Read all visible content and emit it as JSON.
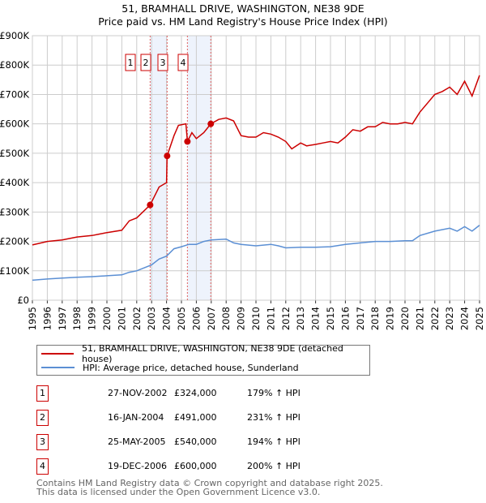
{
  "chart_data": {
    "type": "line",
    "title": "51, BRAMHALL DRIVE, WASHINGTON, NE38 9DE",
    "subtitle": "Price paid vs. HM Land Registry's House Price Index (HPI)",
    "xlim": [
      1995,
      2025
    ],
    "ylim": [
      0,
      900000
    ],
    "x_ticks": [
      "1995",
      "1996",
      "1997",
      "1998",
      "1999",
      "2000",
      "2001",
      "2002",
      "2003",
      "2004",
      "2005",
      "2006",
      "2007",
      "2008",
      "2009",
      "2010",
      "2011",
      "2012",
      "2013",
      "2014",
      "2015",
      "2016",
      "2017",
      "2018",
      "2019",
      "2020",
      "2021",
      "2022",
      "2023",
      "2024",
      "2025"
    ],
    "y_ticks": [
      {
        "value": 0,
        "label": "£0"
      },
      {
        "value": 100000,
        "label": "£100K"
      },
      {
        "value": 200000,
        "label": "£200K"
      },
      {
        "value": 300000,
        "label": "£300K"
      },
      {
        "value": 400000,
        "label": "£400K"
      },
      {
        "value": 500000,
        "label": "£500K"
      },
      {
        "value": 600000,
        "label": "£600K"
      },
      {
        "value": 700000,
        "label": "£700K"
      },
      {
        "value": 800000,
        "label": "£800K"
      },
      {
        "value": 900000,
        "label": "£900K"
      }
    ],
    "grid": true,
    "series": [
      {
        "name": "51, BRAMHALL DRIVE, WASHINGTON, NE38 9DE (detached house)",
        "color": "#cc0000",
        "x": [
          1995,
          1996,
          1997,
          1998,
          1999,
          1999.5,
          2000,
          2001,
          2001.5,
          2002,
          2002.9,
          2003.5,
          2004.0,
          2004.04,
          2004.5,
          2004.8,
          2005.3,
          2005.4,
          2005.7,
          2006.0,
          2006.5,
          2006.97,
          2007.5,
          2008,
          2008.5,
          2009,
          2009.5,
          2010,
          2010.5,
          2011,
          2011.5,
          2012,
          2012.4,
          2013,
          2013.4,
          2014,
          2014.5,
          2015,
          2015.5,
          2016,
          2016.5,
          2017,
          2017.5,
          2018,
          2018.5,
          2019,
          2019.5,
          2020,
          2020.5,
          2021,
          2021.5,
          2022,
          2022.5,
          2023,
          2023.5,
          2024,
          2024.5,
          2025
        ],
        "values": [
          188000,
          200000,
          205000,
          215000,
          220000,
          225000,
          230000,
          238000,
          270000,
          280000,
          324000,
          385000,
          400000,
          491000,
          560000,
          595000,
          600000,
          540000,
          570000,
          550000,
          570000,
          600000,
          615000,
          620000,
          610000,
          560000,
          555000,
          555000,
          570000,
          565000,
          555000,
          540000,
          515000,
          535000,
          525000,
          530000,
          535000,
          540000,
          535000,
          555000,
          580000,
          575000,
          590000,
          590000,
          605000,
          600000,
          600000,
          605000,
          600000,
          640000,
          670000,
          700000,
          710000,
          725000,
          700000,
          745000,
          695000,
          765000
        ]
      },
      {
        "name": "HPI: Average price, detached house, Sunderland",
        "color": "#5b8fd4",
        "x": [
          1995,
          1996,
          1997,
          1998,
          1999,
          2000,
          2001,
          2001.5,
          2002,
          2003,
          2003.5,
          2004,
          2004.5,
          2005,
          2005.5,
          2006,
          2006.5,
          2007,
          2008,
          2008.5,
          2009,
          2010,
          2011,
          2011.5,
          2012,
          2013,
          2014,
          2015,
          2016,
          2017,
          2018,
          2019,
          2020,
          2020.5,
          2021,
          2022,
          2023,
          2023.5,
          2024,
          2024.5,
          2025
        ],
        "values": [
          68000,
          72000,
          75000,
          78000,
          80000,
          83000,
          86000,
          95000,
          100000,
          120000,
          140000,
          150000,
          175000,
          182000,
          190000,
          190000,
          200000,
          205000,
          208000,
          195000,
          190000,
          185000,
          190000,
          185000,
          178000,
          180000,
          180000,
          182000,
          190000,
          195000,
          200000,
          200000,
          202000,
          202000,
          220000,
          235000,
          245000,
          235000,
          250000,
          235000,
          255000
        ]
      }
    ],
    "sales": [
      {
        "id": "1",
        "date": "27-NOV-2002",
        "x": 2002.9,
        "price": "£324,000",
        "value": 324000,
        "hpi": "179% ↑ HPI"
      },
      {
        "id": "2",
        "date": "16-JAN-2004",
        "x": 2004.04,
        "price": "£491,000",
        "value": 491000,
        "hpi": "231% ↑ HPI"
      },
      {
        "id": "3",
        "date": "25-MAY-2005",
        "x": 2005.4,
        "price": "£540,000",
        "value": 540000,
        "hpi": "194% ↑ HPI"
      },
      {
        "id": "4",
        "date": "19-DEC-2006",
        "x": 2006.97,
        "price": "£600,000",
        "value": 600000,
        "hpi": "200% ↑ HPI"
      }
    ],
    "shaded_ranges": [
      [
        2002.9,
        2004.04
      ],
      [
        2005.4,
        2006.97
      ]
    ],
    "legend_position": "below"
  },
  "footer": {
    "line1": "Contains HM Land Registry data © Crown copyright and database right 2025.",
    "line2": "This data is licensed under the Open Government Licence v3.0."
  }
}
